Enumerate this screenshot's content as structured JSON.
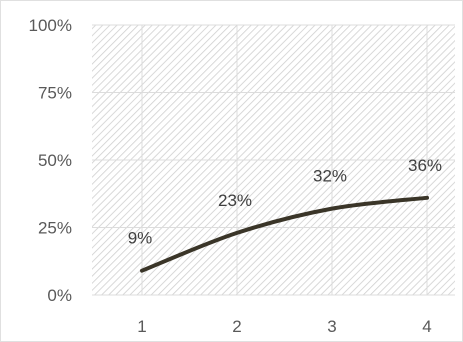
{
  "chart_data": {
    "type": "line",
    "title": "",
    "xlabel": "",
    "ylabel": "",
    "categories": [
      "1",
      "2",
      "3",
      "4"
    ],
    "series": [
      {
        "values": [
          9,
          23,
          32,
          36
        ]
      }
    ],
    "data_labels": [
      "9%",
      "23%",
      "32%",
      "36%"
    ],
    "y_ticks": [
      "0%",
      "25%",
      "50%",
      "75%",
      "100%"
    ],
    "ylim": [
      0,
      100
    ],
    "grid": true,
    "legend": "none",
    "colors": {
      "line": "#3a3528",
      "plot_hatch": "#cfcfcf",
      "gridline": "#dcdcdc",
      "text": "#595959",
      "frame": "#e0e0e0"
    }
  }
}
